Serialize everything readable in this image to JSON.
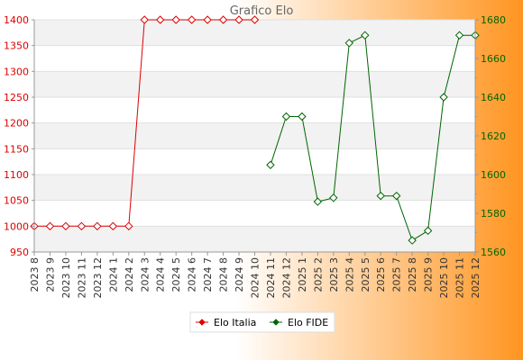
{
  "chart_data": {
    "type": "line",
    "title": "Grafico Elo",
    "categories": [
      "2023 8",
      "2023 9",
      "2023 10",
      "2023 11",
      "2023 12",
      "2024 1",
      "2024 2",
      "2024 3",
      "2024 4",
      "2024 5",
      "2024 6",
      "2024 7",
      "2024 8",
      "2024 9",
      "2024 10",
      "2024 11",
      "2024 12",
      "2025 1",
      "2025 2",
      "2025 3",
      "2025 4",
      "2025 5",
      "2025 6",
      "2025 7",
      "2025 8",
      "2025 9",
      "2025 10",
      "2025 11",
      "2025 12"
    ],
    "y_left": {
      "min": 950,
      "max": 1400,
      "ticks": [
        950,
        1000,
        1050,
        1100,
        1150,
        1200,
        1250,
        1300,
        1350,
        1400
      ]
    },
    "y_right": {
      "min": 1560,
      "max": 1680,
      "ticks": [
        1560,
        1580,
        1600,
        1620,
        1640,
        1660,
        1680
      ]
    },
    "grid": "horizontal bands",
    "legend_position": "bottom",
    "series": [
      {
        "name": "Elo Italia",
        "axis": "left",
        "color": "#dd0000",
        "values": [
          1000,
          1000,
          1000,
          1000,
          1000,
          1000,
          1000,
          1400,
          1400,
          1400,
          1400,
          1400,
          1400,
          1400,
          1400,
          null,
          null,
          null,
          null,
          null,
          null,
          null,
          null,
          null,
          null,
          null,
          null,
          null,
          null
        ]
      },
      {
        "name": "Elo FIDE",
        "axis": "right",
        "color": "#006600",
        "values": [
          null,
          null,
          null,
          null,
          null,
          null,
          null,
          null,
          null,
          null,
          null,
          null,
          null,
          null,
          null,
          1605,
          1630,
          1630,
          1586,
          1588,
          1668,
          1672,
          1589,
          1589,
          1566,
          1571,
          1640,
          1672,
          1672
        ]
      }
    ]
  }
}
